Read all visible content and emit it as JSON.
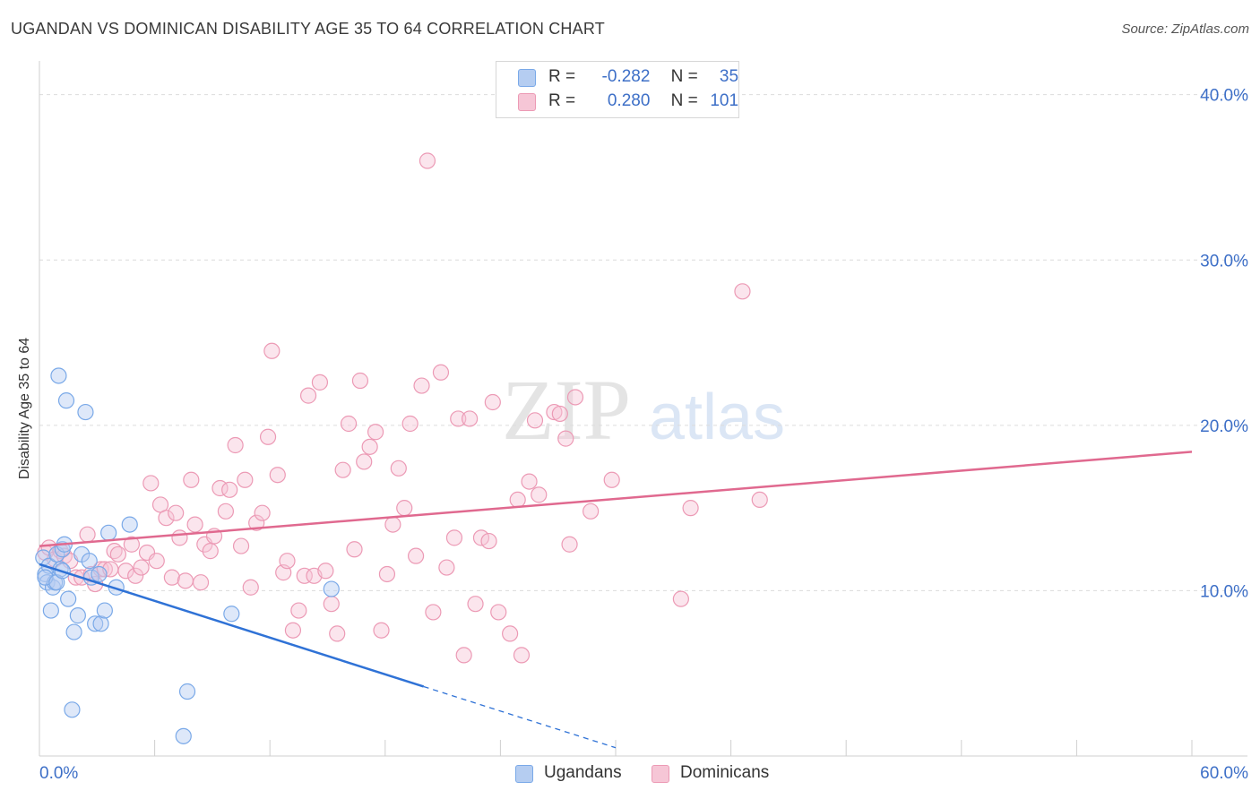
{
  "title": "UGANDAN VS DOMINICAN DISABILITY AGE 35 TO 64 CORRELATION CHART",
  "source": "Source: ZipAtlas.com",
  "watermark_zip": "ZIP",
  "watermark_atlas": "atlas",
  "legend_top": {
    "rows": [
      {
        "r_label": "R =",
        "r_value": "-0.282",
        "n_label": "N =",
        "n_value": "35"
      },
      {
        "r_label": "R =",
        "r_value": "0.280",
        "n_label": "N =",
        "n_value": "101"
      }
    ]
  },
  "chart_data": {
    "type": "scatter",
    "title": "UGANDAN VS DOMINICAN DISABILITY AGE 35 TO 64 CORRELATION CHART",
    "xlabel": "",
    "ylabel": "Disability Age 35 to 64",
    "xlim": [
      0,
      60
    ],
    "ylim": [
      0,
      41.5
    ],
    "x_tick_labels": [
      "0.0%",
      "60.0%"
    ],
    "y_ticks": [
      10,
      20,
      30,
      40
    ],
    "y_tick_labels": [
      "10.0%",
      "20.0%",
      "30.0%",
      "40.0%"
    ],
    "grid": true,
    "legend": "bottom-center",
    "series": [
      {
        "name": "Ugandans",
        "color": "#7aa9e8",
        "fill": "#b5cdf1",
        "trend_color": "#2f72d6",
        "trend": {
          "x0": 0,
          "y0": 11.6,
          "x1": 20,
          "y1": 4.2,
          "dash_to_x": 30
        },
        "points": [
          [
            0.2,
            12.0
          ],
          [
            0.3,
            11.0
          ],
          [
            0.4,
            10.5
          ],
          [
            0.5,
            11.5
          ],
          [
            0.6,
            8.8
          ],
          [
            0.7,
            10.2
          ],
          [
            0.8,
            10.5
          ],
          [
            0.9,
            12.2
          ],
          [
            1.0,
            23.0
          ],
          [
            1.1,
            11.3
          ],
          [
            1.2,
            12.5
          ],
          [
            1.3,
            12.8
          ],
          [
            1.4,
            21.5
          ],
          [
            1.5,
            9.5
          ],
          [
            1.7,
            2.8
          ],
          [
            1.8,
            7.5
          ],
          [
            2.0,
            8.5
          ],
          [
            2.2,
            12.2
          ],
          [
            2.4,
            20.8
          ],
          [
            2.6,
            11.8
          ],
          [
            2.7,
            10.8
          ],
          [
            2.9,
            8.0
          ],
          [
            3.1,
            11.0
          ],
          [
            3.2,
            8.0
          ],
          [
            3.4,
            8.8
          ],
          [
            3.6,
            13.5
          ],
          [
            4.0,
            10.2
          ],
          [
            4.7,
            14.0
          ],
          [
            7.5,
            1.2
          ],
          [
            7.7,
            3.9
          ],
          [
            10.0,
            8.6
          ],
          [
            15.2,
            10.1
          ],
          [
            0.3,
            10.8
          ],
          [
            0.9,
            10.5
          ],
          [
            1.2,
            11.2
          ]
        ]
      },
      {
        "name": "Dominicans",
        "color": "#ec9ab5",
        "fill": "#f6c6d6",
        "trend_color": "#e0698f",
        "trend": {
          "x0": 0,
          "y0": 12.7,
          "x1": 60,
          "y1": 18.4
        },
        "points": [
          [
            0.3,
            12.3
          ],
          [
            0.5,
            12.6
          ],
          [
            0.8,
            11.9
          ],
          [
            1.1,
            12.4
          ],
          [
            1.3,
            12.1
          ],
          [
            1.6,
            11.8
          ],
          [
            1.9,
            10.8
          ],
          [
            2.2,
            10.8
          ],
          [
            2.5,
            13.4
          ],
          [
            2.7,
            11.0
          ],
          [
            2.9,
            10.4
          ],
          [
            3.2,
            11.3
          ],
          [
            3.4,
            11.3
          ],
          [
            3.7,
            11.3
          ],
          [
            3.9,
            12.4
          ],
          [
            4.1,
            12.2
          ],
          [
            4.5,
            11.2
          ],
          [
            4.8,
            12.8
          ],
          [
            5.0,
            10.9
          ],
          [
            5.3,
            11.4
          ],
          [
            5.6,
            12.3
          ],
          [
            5.8,
            16.5
          ],
          [
            6.1,
            11.8
          ],
          [
            6.3,
            15.2
          ],
          [
            6.6,
            14.4
          ],
          [
            6.9,
            10.8
          ],
          [
            7.1,
            14.7
          ],
          [
            7.3,
            13.2
          ],
          [
            7.6,
            10.6
          ],
          [
            7.9,
            16.7
          ],
          [
            8.1,
            14.0
          ],
          [
            8.4,
            10.5
          ],
          [
            8.6,
            12.8
          ],
          [
            8.9,
            12.4
          ],
          [
            9.1,
            13.3
          ],
          [
            9.4,
            16.2
          ],
          [
            9.7,
            14.8
          ],
          [
            9.9,
            16.1
          ],
          [
            10.2,
            18.8
          ],
          [
            10.5,
            12.7
          ],
          [
            10.7,
            16.7
          ],
          [
            11.0,
            10.2
          ],
          [
            11.3,
            14.1
          ],
          [
            11.6,
            14.7
          ],
          [
            11.9,
            19.3
          ],
          [
            12.1,
            24.5
          ],
          [
            12.4,
            17.0
          ],
          [
            12.7,
            11.1
          ],
          [
            12.9,
            11.8
          ],
          [
            13.2,
            7.6
          ],
          [
            13.5,
            8.8
          ],
          [
            13.8,
            10.9
          ],
          [
            14.0,
            21.8
          ],
          [
            14.3,
            10.9
          ],
          [
            14.6,
            22.6
          ],
          [
            14.9,
            11.2
          ],
          [
            15.2,
            9.2
          ],
          [
            15.5,
            7.4
          ],
          [
            15.8,
            17.3
          ],
          [
            16.1,
            20.1
          ],
          [
            16.4,
            12.5
          ],
          [
            16.7,
            22.7
          ],
          [
            16.9,
            17.8
          ],
          [
            17.2,
            18.7
          ],
          [
            17.5,
            19.6
          ],
          [
            17.8,
            7.6
          ],
          [
            18.1,
            11.0
          ],
          [
            18.4,
            14.0
          ],
          [
            18.7,
            17.4
          ],
          [
            19.0,
            15.0
          ],
          [
            19.3,
            20.1
          ],
          [
            19.6,
            12.1
          ],
          [
            19.9,
            22.4
          ],
          [
            20.2,
            36.0
          ],
          [
            20.5,
            8.7
          ],
          [
            20.9,
            23.2
          ],
          [
            21.2,
            11.4
          ],
          [
            21.6,
            13.2
          ],
          [
            21.8,
            20.4
          ],
          [
            22.1,
            6.1
          ],
          [
            22.4,
            20.4
          ],
          [
            22.7,
            9.2
          ],
          [
            23.0,
            13.2
          ],
          [
            23.4,
            13.0
          ],
          [
            23.6,
            21.4
          ],
          [
            23.9,
            8.7
          ],
          [
            24.5,
            7.4
          ],
          [
            24.9,
            15.5
          ],
          [
            25.1,
            6.1
          ],
          [
            25.5,
            16.6
          ],
          [
            25.8,
            20.3
          ],
          [
            26.0,
            15.8
          ],
          [
            26.8,
            20.8
          ],
          [
            27.1,
            20.7
          ],
          [
            27.4,
            19.2
          ],
          [
            27.6,
            12.8
          ],
          [
            27.9,
            21.7
          ],
          [
            28.7,
            14.8
          ],
          [
            29.8,
            16.7
          ],
          [
            33.4,
            9.5
          ],
          [
            33.9,
            15.0
          ],
          [
            36.6,
            28.1
          ],
          [
            37.5,
            15.5
          ]
        ]
      }
    ]
  }
}
